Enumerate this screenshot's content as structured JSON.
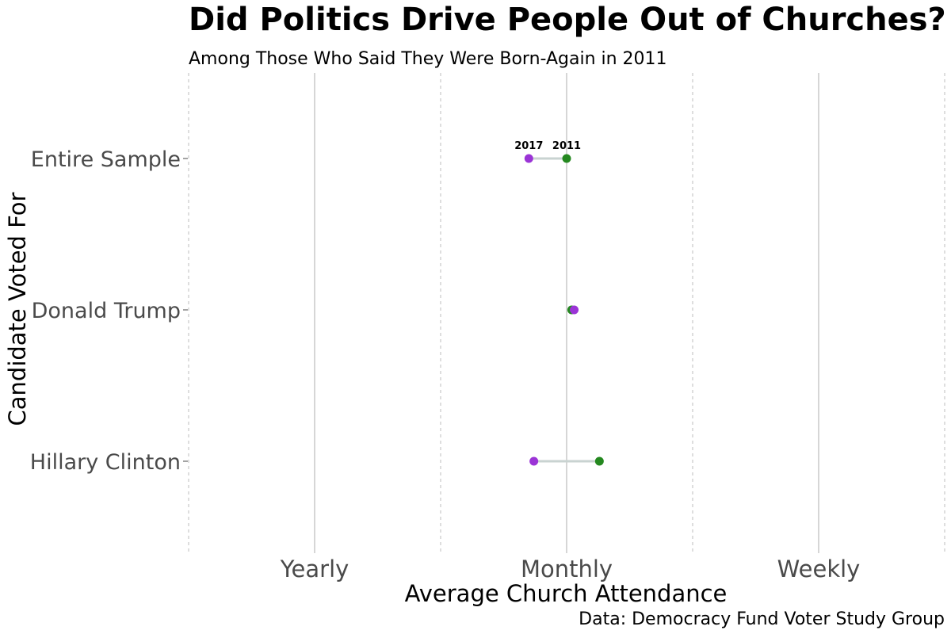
{
  "chart_data": {
    "type": "dumbbell",
    "title": "Did Politics Drive People Out of Churches?",
    "subtitle": "Among Those Who Said They Were Born-Again in 2011",
    "xlabel": "Average Church Attendance",
    "ylabel": "Candidate Voted For",
    "caption": "Data: Democracy Fund Voter Study Group",
    "x_ticks": [
      {
        "value": 1,
        "label": "Yearly"
      },
      {
        "value": 2,
        "label": "Monthly"
      },
      {
        "value": 3,
        "label": "Weekly"
      }
    ],
    "xlim": [
      0.5,
      3.5
    ],
    "grid": {
      "major": true,
      "minor": true
    },
    "categories": [
      "Entire Sample",
      "Donald Trump",
      "Hillary Clinton"
    ],
    "series": [
      {
        "name": "2017",
        "color": "#9b34d6",
        "values": [
          1.85,
          2.03,
          1.87
        ]
      },
      {
        "name": "2011",
        "color": "#24881f",
        "values": [
          2.0,
          2.02,
          2.13
        ]
      }
    ],
    "connector_color": "#c9d3d1",
    "point_labels": [
      {
        "category": "Entire Sample",
        "series": "2017",
        "text": "2017"
      },
      {
        "category": "Entire Sample",
        "series": "2011",
        "text": "2011"
      }
    ]
  }
}
